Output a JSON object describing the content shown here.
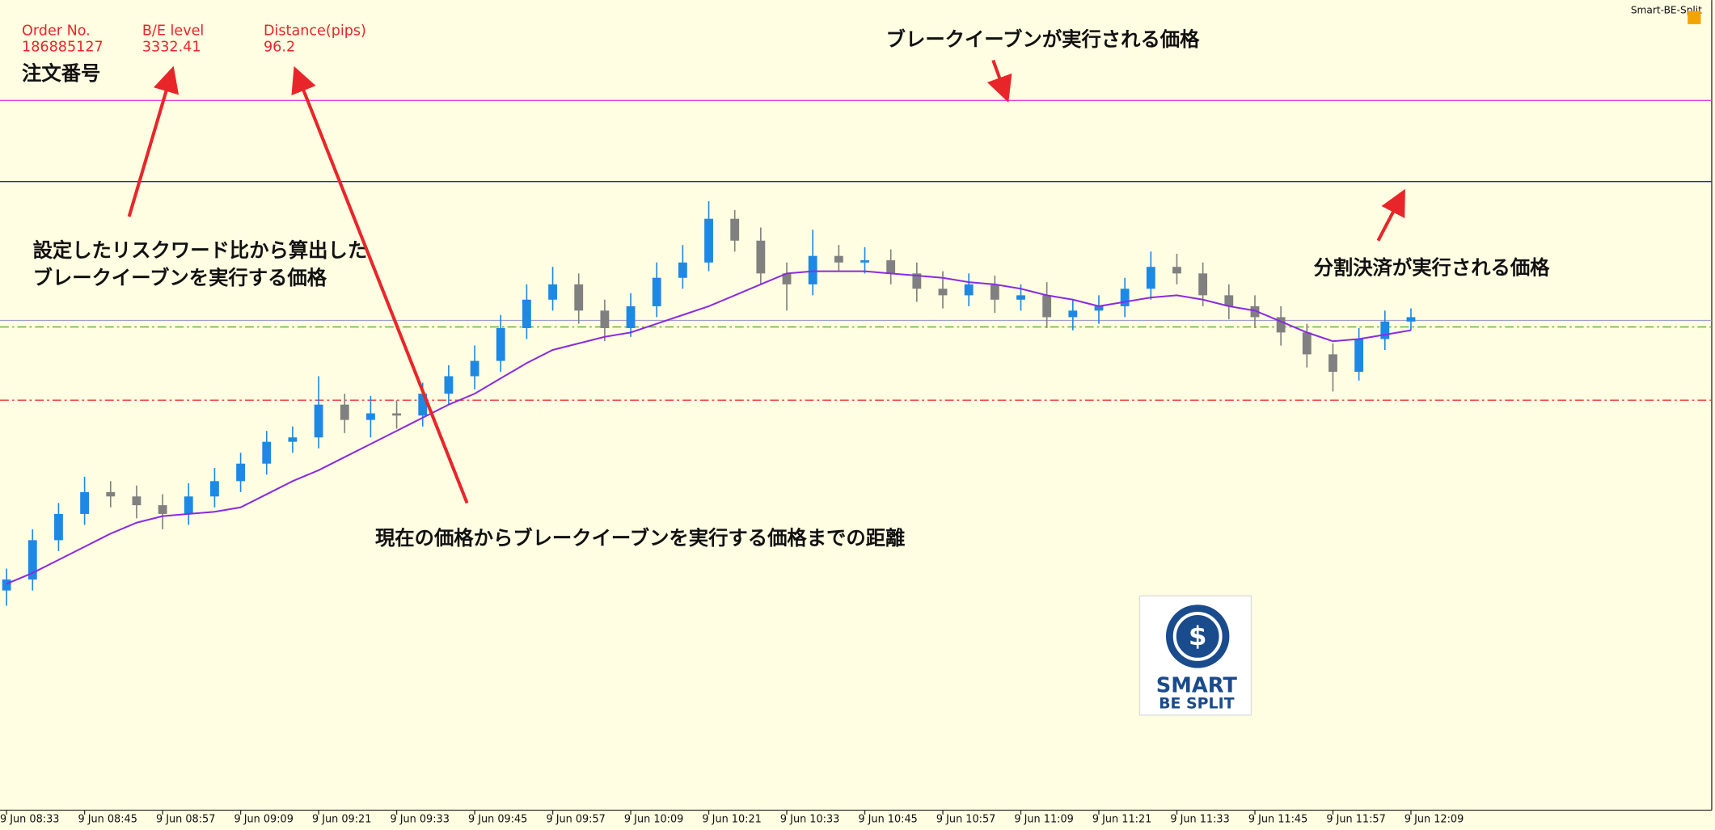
{
  "app_title": "Smart-BE-Split",
  "info": [
    {
      "label": "Order No.",
      "value": "186885127"
    },
    {
      "label": "B/E level",
      "value": "3332.41"
    },
    {
      "label": "Distance(pips)",
      "value": "96.2"
    }
  ],
  "order_caption": "注文番号",
  "annotations": {
    "be_price": "ブレークイーブンが実行される価格",
    "rr_price": [
      "設定したリスクワード比から算出した",
      "ブレークイーブンを実行する価格"
    ],
    "split_price": "分割決済が実行される価格",
    "distance": "現在の価格からブレークイーブンを実行する価格までの距離"
  },
  "logo": {
    "line1": "SMART",
    "line2": "BE SPLIT"
  },
  "chart_data": {
    "type": "candlestick",
    "ylim": [
      3300,
      3337
    ],
    "categories": [
      "9 Jun 08:33",
      null,
      null,
      "9 Jun 08:45",
      null,
      null,
      "9 Jun 08:57",
      null,
      null,
      "9 Jun 09:09",
      null,
      null,
      "9 Jun 09:21",
      null,
      null,
      "9 Jun 09:33",
      null,
      null,
      "9 Jun 09:45",
      null,
      null,
      "9 Jun 09:57",
      null,
      null,
      "9 Jun 10:09",
      null,
      null,
      "9 Jun 10:21",
      null,
      null,
      "9 Jun 10:33",
      null,
      null,
      "9 Jun 10:45",
      null,
      null,
      "9 Jun 10:57",
      null,
      null,
      "9 Jun 11:09",
      null,
      null,
      "9 Jun 11:21",
      null,
      null,
      "9 Jun 11:33",
      null,
      null,
      "9 Jun 11:45",
      null,
      null,
      "9 Jun 11:57",
      null,
      null,
      "9 Jun 12:09"
    ],
    "up_color": "#1e88e5",
    "down_color": "#808080",
    "open": [
      3310.0,
      3310.5,
      3312.3,
      3313.5,
      3314.5,
      3314.3,
      3313.9,
      3313.5,
      3314.3,
      3315.0,
      3315.8,
      3316.8,
      3317.0,
      3318.5,
      3317.8,
      3318.1,
      3318.0,
      3319.0,
      3319.8,
      3320.5,
      3322.0,
      3323.3,
      3324.0,
      3322.8,
      3322.0,
      3323.0,
      3324.3,
      3325.0,
      3327.0,
      3326.0,
      3324.5,
      3324.0,
      3325.3,
      3325.0,
      3325.1,
      3324.5,
      3323.8,
      3323.5,
      3324.0,
      3323.3,
      3323.5,
      3322.5,
      3322.8,
      3323.0,
      3323.8,
      3324.8,
      3324.5,
      3323.5,
      3323.0,
      3322.5,
      3321.8,
      3320.8,
      3320.0,
      3321.5,
      3322.3
    ],
    "high": [
      3311.0,
      3312.8,
      3314.0,
      3315.2,
      3315.0,
      3314.8,
      3314.4,
      3314.9,
      3315.6,
      3316.3,
      3317.3,
      3317.5,
      3319.8,
      3319.0,
      3318.9,
      3318.7,
      3319.5,
      3320.3,
      3321.2,
      3322.6,
      3324.0,
      3324.8,
      3324.5,
      3323.3,
      3323.6,
      3325.0,
      3325.8,
      3327.8,
      3327.4,
      3326.6,
      3325.0,
      3326.5,
      3325.8,
      3325.7,
      3325.6,
      3325.0,
      3324.6,
      3324.5,
      3324.4,
      3324.0,
      3324.1,
      3323.3,
      3323.5,
      3324.3,
      3325.5,
      3325.4,
      3325.0,
      3324.0,
      3323.5,
      3323.0,
      3322.2,
      3321.3,
      3322.0,
      3322.8,
      3322.9
    ],
    "low": [
      3309.3,
      3310.0,
      3311.8,
      3313.0,
      3313.8,
      3313.3,
      3312.8,
      3313.0,
      3313.8,
      3314.5,
      3315.3,
      3316.3,
      3316.5,
      3317.2,
      3317.0,
      3317.4,
      3317.5,
      3318.5,
      3319.2,
      3320.0,
      3321.5,
      3322.8,
      3322.2,
      3321.4,
      3321.6,
      3322.5,
      3323.8,
      3324.6,
      3325.5,
      3324.0,
      3322.8,
      3323.5,
      3324.6,
      3324.5,
      3324.0,
      3323.2,
      3322.9,
      3323.0,
      3322.7,
      3322.8,
      3322.0,
      3321.9,
      3322.2,
      3322.5,
      3323.3,
      3324.0,
      3323.0,
      3322.4,
      3322.0,
      3321.2,
      3320.2,
      3319.1,
      3319.6,
      3321.0,
      3321.9
    ],
    "close": [
      3310.5,
      3312.3,
      3313.5,
      3314.5,
      3314.3,
      3313.9,
      3313.5,
      3314.3,
      3315.0,
      3315.8,
      3316.8,
      3317.0,
      3318.5,
      3317.8,
      3318.1,
      3318.0,
      3319.0,
      3319.8,
      3320.5,
      3322.0,
      3323.3,
      3324.0,
      3322.8,
      3322.0,
      3323.0,
      3324.3,
      3325.0,
      3327.0,
      3326.0,
      3324.5,
      3324.0,
      3325.3,
      3325.0,
      3325.1,
      3324.5,
      3323.8,
      3323.5,
      3324.0,
      3323.3,
      3323.5,
      3322.5,
      3322.8,
      3323.0,
      3323.8,
      3324.8,
      3324.5,
      3323.5,
      3323.0,
      3322.5,
      3321.8,
      3320.8,
      3320.0,
      3321.5,
      3322.3,
      3322.5
    ],
    "ma_color": "#8a2be2",
    "ma": [
      3310.3,
      3310.8,
      3311.4,
      3312.0,
      3312.6,
      3313.1,
      3313.4,
      3313.5,
      3313.6,
      3313.8,
      3314.4,
      3315.0,
      3315.5,
      3316.1,
      3316.7,
      3317.3,
      3317.9,
      3318.5,
      3319.0,
      3319.7,
      3320.4,
      3321.0,
      3321.3,
      3321.6,
      3321.8,
      3322.2,
      3322.6,
      3323.0,
      3323.5,
      3324.0,
      3324.5,
      3324.6,
      3324.6,
      3324.6,
      3324.5,
      3324.4,
      3324.3,
      3324.1,
      3324.0,
      3323.8,
      3323.5,
      3323.3,
      3323.0,
      3323.2,
      3323.4,
      3323.5,
      3323.3,
      3323.0,
      3322.8,
      3322.3,
      3321.8,
      3321.4,
      3321.5,
      3321.7,
      3321.9
    ],
    "levels": [
      {
        "value": 3332.41,
        "color": "#e040e0",
        "style": "solid"
      },
      {
        "value": 3328.7,
        "color": "#2828c0",
        "style": "solid"
      },
      {
        "value": 3322.35,
        "color": "#a0a0c8",
        "style": "solid"
      },
      {
        "value": 3322.05,
        "color": "#5aaa3a",
        "style": "dashdot"
      },
      {
        "value": 3318.7,
        "color": "#ee3333",
        "style": "dashdot"
      }
    ]
  }
}
